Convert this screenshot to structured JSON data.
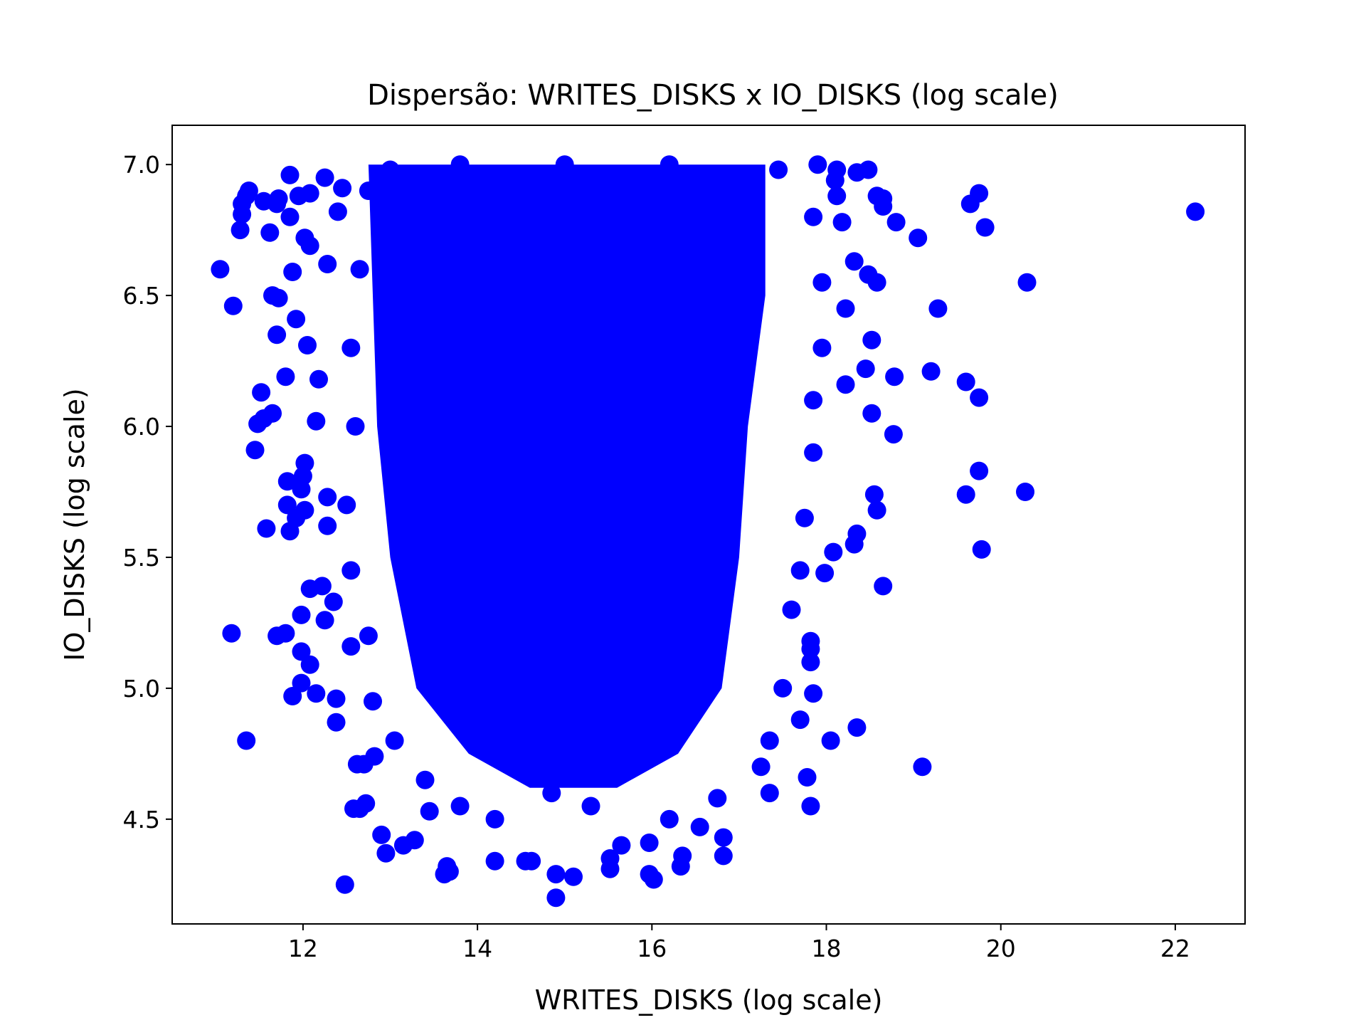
{
  "chart_data": {
    "type": "scatter",
    "title": "Dispersão: WRITES_DISKS x IO_DISKS (log scale)",
    "xlabel": "WRITES_DISKS (log scale)",
    "ylabel": "IO_DISKS (log scale)",
    "xlim": [
      10.5,
      22.8
    ],
    "ylim": [
      4.1,
      7.15
    ],
    "xticks": [
      12,
      14,
      16,
      18,
      20,
      22
    ],
    "yticks": [
      4.5,
      5.0,
      5.5,
      6.0,
      6.5,
      7.0
    ],
    "xtick_labels": [
      "12",
      "14",
      "16",
      "18",
      "20",
      "22"
    ],
    "ytick_labels": [
      "4.5",
      "5.0",
      "5.5",
      "6.0",
      "6.5",
      "7.0"
    ],
    "grid": false,
    "color": "#0000ff",
    "dense_region": {
      "x_range": [
        12.7,
        17.3
      ],
      "y_range": [
        4.6,
        7.0
      ]
    },
    "points": [
      [
        22.23,
        6.82
      ],
      [
        20.3,
        6.55
      ],
      [
        20.28,
        5.75
      ],
      [
        19.75,
        6.89
      ],
      [
        19.65,
        6.85
      ],
      [
        19.82,
        6.76
      ],
      [
        19.28,
        6.45
      ],
      [
        19.2,
        6.21
      ],
      [
        19.6,
        6.17
      ],
      [
        19.75,
        6.11
      ],
      [
        19.75,
        5.83
      ],
      [
        19.6,
        5.74
      ],
      [
        19.78,
        5.53
      ],
      [
        19.1,
        4.7
      ],
      [
        19.05,
        6.72
      ],
      [
        18.8,
        6.78
      ],
      [
        18.78,
        6.19
      ],
      [
        18.77,
        5.97
      ],
      [
        18.65,
        5.39
      ],
      [
        18.35,
        4.85
      ],
      [
        18.05,
        4.8
      ],
      [
        18.52,
        6.05
      ],
      [
        18.55,
        5.74
      ],
      [
        18.58,
        5.68
      ],
      [
        18.52,
        6.33
      ],
      [
        18.58,
        6.55
      ],
      [
        18.48,
        6.58
      ],
      [
        18.58,
        6.88
      ],
      [
        18.65,
        6.87
      ],
      [
        18.65,
        6.84
      ],
      [
        18.48,
        6.98
      ],
      [
        18.35,
        6.97
      ],
      [
        18.12,
        6.98
      ],
      [
        18.1,
        6.94
      ],
      [
        18.12,
        6.88
      ],
      [
        18.18,
        6.78
      ],
      [
        18.32,
        6.63
      ],
      [
        18.22,
        6.45
      ],
      [
        18.45,
        6.22
      ],
      [
        18.22,
        6.16
      ],
      [
        18.35,
        5.59
      ],
      [
        18.32,
        5.55
      ],
      [
        18.08,
        5.52
      ],
      [
        17.98,
        5.44
      ],
      [
        17.82,
        5.18
      ],
      [
        17.82,
        5.15
      ],
      [
        17.82,
        5.1
      ],
      [
        17.85,
        4.98
      ],
      [
        17.78,
        4.66
      ],
      [
        17.82,
        4.55
      ],
      [
        17.7,
        4.88
      ],
      [
        17.35,
        4.6
      ],
      [
        16.82,
        4.36
      ],
      [
        16.82,
        4.43
      ],
      [
        16.55,
        4.47
      ],
      [
        16.35,
        4.36
      ],
      [
        16.33,
        4.32
      ],
      [
        16.02,
        4.27
      ],
      [
        15.97,
        4.29
      ],
      [
        15.97,
        4.41
      ],
      [
        15.52,
        4.31
      ],
      [
        15.52,
        4.35
      ],
      [
        15.1,
        4.28
      ],
      [
        14.9,
        4.2
      ],
      [
        14.9,
        4.29
      ],
      [
        14.62,
        4.34
      ],
      [
        14.55,
        4.34
      ],
      [
        14.2,
        4.34
      ],
      [
        13.68,
        4.3
      ],
      [
        13.65,
        4.32
      ],
      [
        13.62,
        4.29
      ],
      [
        12.48,
        4.25
      ],
      [
        12.95,
        4.37
      ],
      [
        12.9,
        4.44
      ],
      [
        13.15,
        4.4
      ],
      [
        13.28,
        4.42
      ],
      [
        13.45,
        4.53
      ],
      [
        12.72,
        4.56
      ],
      [
        12.65,
        4.54
      ],
      [
        12.58,
        4.54
      ],
      [
        12.62,
        4.71
      ],
      [
        12.7,
        4.71
      ],
      [
        12.82,
        4.74
      ],
      [
        12.38,
        4.87
      ],
      [
        11.35,
        4.8
      ],
      [
        11.88,
        4.97
      ],
      [
        11.98,
        5.02
      ],
      [
        12.15,
        4.98
      ],
      [
        12.38,
        4.96
      ],
      [
        11.7,
        5.2
      ],
      [
        11.8,
        5.21
      ],
      [
        11.98,
        5.14
      ],
      [
        12.08,
        5.09
      ],
      [
        11.98,
        5.28
      ],
      [
        12.25,
        5.26
      ],
      [
        12.35,
        5.33
      ],
      [
        12.55,
        5.16
      ],
      [
        12.08,
        5.38
      ],
      [
        12.22,
        5.39
      ],
      [
        11.18,
        5.21
      ],
      [
        11.58,
        5.61
      ],
      [
        11.85,
        5.6
      ],
      [
        11.92,
        5.65
      ],
      [
        12.02,
        5.68
      ],
      [
        11.82,
        5.7
      ],
      [
        11.98,
        5.76
      ],
      [
        12.0,
        5.81
      ],
      [
        11.82,
        5.79
      ],
      [
        12.02,
        5.86
      ],
      [
        12.28,
        5.62
      ],
      [
        12.28,
        5.73
      ],
      [
        11.45,
        5.91
      ],
      [
        11.48,
        6.01
      ],
      [
        11.55,
        6.03
      ],
      [
        11.65,
        6.05
      ],
      [
        11.52,
        6.13
      ],
      [
        11.8,
        6.19
      ],
      [
        12.15,
        6.02
      ],
      [
        12.18,
        6.18
      ],
      [
        11.7,
        6.35
      ],
      [
        11.72,
        6.49
      ],
      [
        11.65,
        6.5
      ],
      [
        12.05,
        6.31
      ],
      [
        11.92,
        6.41
      ],
      [
        11.88,
        6.59
      ],
      [
        11.2,
        6.46
      ],
      [
        11.05,
        6.6
      ],
      [
        11.28,
        6.75
      ],
      [
        11.3,
        6.81
      ],
      [
        11.3,
        6.85
      ],
      [
        11.35,
        6.88
      ],
      [
        11.38,
        6.9
      ],
      [
        11.55,
        6.86
      ],
      [
        11.62,
        6.74
      ],
      [
        11.7,
        6.85
      ],
      [
        11.72,
        6.87
      ],
      [
        11.85,
        6.8
      ],
      [
        11.95,
        6.88
      ],
      [
        12.08,
        6.89
      ],
      [
        12.02,
        6.72
      ],
      [
        12.08,
        6.69
      ],
      [
        11.85,
        6.96
      ],
      [
        12.25,
        6.95
      ],
      [
        12.28,
        6.62
      ],
      [
        12.4,
        6.82
      ],
      [
        12.45,
        6.91
      ],
      [
        14.85,
        4.6
      ],
      [
        15.3,
        4.55
      ],
      [
        15.65,
        4.4
      ],
      [
        16.2,
        4.5
      ],
      [
        16.75,
        4.58
      ],
      [
        17.25,
        4.7
      ],
      [
        17.35,
        4.8
      ],
      [
        17.5,
        5.0
      ],
      [
        17.6,
        5.3
      ],
      [
        17.7,
        5.45
      ],
      [
        17.75,
        5.65
      ],
      [
        17.85,
        5.9
      ],
      [
        17.85,
        6.1
      ],
      [
        17.95,
        6.3
      ],
      [
        17.95,
        6.55
      ],
      [
        17.85,
        6.8
      ],
      [
        17.9,
        7.0
      ],
      [
        17.45,
        6.98
      ],
      [
        16.2,
        7.0
      ],
      [
        15.0,
        7.0
      ],
      [
        13.8,
        7.0
      ],
      [
        13.0,
        6.98
      ],
      [
        12.75,
        6.9
      ],
      [
        12.65,
        6.6
      ],
      [
        12.55,
        6.3
      ],
      [
        12.6,
        6.0
      ],
      [
        12.5,
        5.7
      ],
      [
        12.55,
        5.45
      ],
      [
        12.75,
        5.2
      ],
      [
        12.8,
        4.95
      ],
      [
        13.05,
        4.8
      ],
      [
        13.4,
        4.65
      ],
      [
        13.8,
        4.55
      ],
      [
        14.2,
        4.5
      ]
    ]
  }
}
